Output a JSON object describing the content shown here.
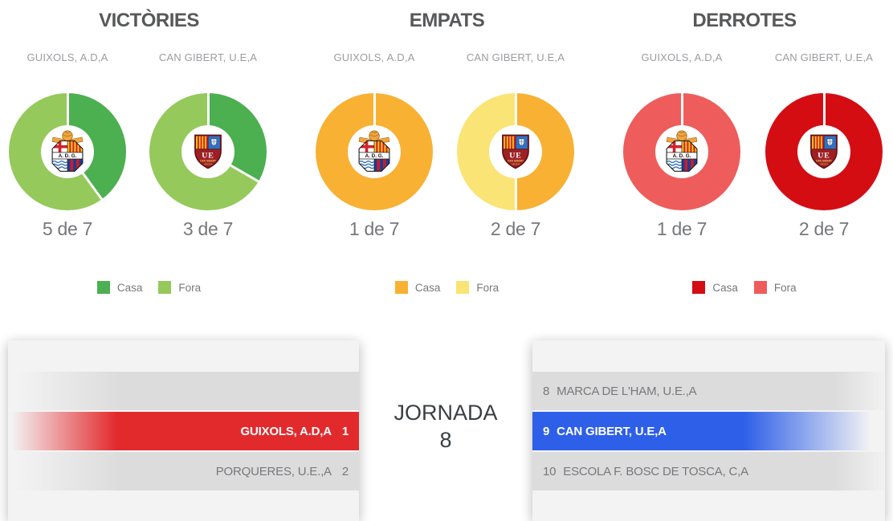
{
  "sections": [
    {
      "title": "VICTÒRIES",
      "legend": {
        "casa": "Casa",
        "fora": "Fora"
      },
      "casa_color": "#4CAF50",
      "fora_color": "#95C95B"
    },
    {
      "title": "EMPATS",
      "legend": {
        "casa": "Casa",
        "fora": "Fora"
      },
      "casa_color": "#F8B133",
      "fora_color": "#FAE475"
    },
    {
      "title": "DERROTES",
      "legend": {
        "casa": "Casa",
        "fora": "Fora"
      },
      "casa_color": "#D40D13",
      "fora_color": "#EF5C5C"
    }
  ],
  "chart_data": [
    {
      "type": "pie",
      "section": "VICTÒRIES",
      "team": "GUIXOLS, A.D,A",
      "crest": "adg-crest",
      "labels": [
        "Casa",
        "Fora"
      ],
      "values": [
        2,
        3
      ],
      "colors": [
        "#4CAF50",
        "#95C95B"
      ],
      "total": 7,
      "label": "5 de 7"
    },
    {
      "type": "pie",
      "section": "VICTÒRIES",
      "team": "CAN GIBERT, U.E,A",
      "crest": "ue-crest",
      "labels": [
        "Casa",
        "Fora"
      ],
      "values": [
        1,
        2
      ],
      "colors": [
        "#4CAF50",
        "#95C95B"
      ],
      "total": 7,
      "label": "3 de 7"
    },
    {
      "type": "pie",
      "section": "EMPATS",
      "team": "GUIXOLS, A.D,A",
      "crest": "adg-crest",
      "labels": [
        "Casa",
        "Fora"
      ],
      "values": [
        1,
        0
      ],
      "colors": [
        "#F8B133",
        "#FAE475"
      ],
      "total": 7,
      "label": "1 de 7"
    },
    {
      "type": "pie",
      "section": "EMPATS",
      "team": "CAN GIBERT, U.E,A",
      "crest": "ue-crest",
      "labels": [
        "Casa",
        "Fora"
      ],
      "values": [
        1,
        1
      ],
      "colors": [
        "#F8B133",
        "#FAE475"
      ],
      "total": 7,
      "label": "2 de 7"
    },
    {
      "type": "pie",
      "section": "DERROTES",
      "team": "GUIXOLS, A.D,A",
      "crest": "adg-crest",
      "labels": [
        "Casa",
        "Fora"
      ],
      "values": [
        0,
        1
      ],
      "colors": [
        "#D40D13",
        "#EF5C5C"
      ],
      "total": 7,
      "label": "1 de 7"
    },
    {
      "type": "pie",
      "section": "DERROTES",
      "team": "CAN GIBERT, U.E,A",
      "crest": "ue-crest",
      "labels": [
        "Casa",
        "Fora"
      ],
      "values": [
        2,
        0
      ],
      "colors": [
        "#D40D13",
        "#EF5C5C"
      ],
      "total": 7,
      "label": "2 de 7"
    }
  ],
  "standings": {
    "jornada_label": "JORNADA",
    "jornada_number": "8",
    "red_color": "#E22A2D",
    "blue_color": "#2E5FE8",
    "left_rows": [
      {
        "pos": "",
        "name": "",
        "style": "empty"
      },
      {
        "pos": "1",
        "name": "GUIXOLS, A.D,A",
        "style": "red"
      },
      {
        "pos": "2",
        "name": "PORQUERES, U.E.,A",
        "style": "gray"
      }
    ],
    "right_rows": [
      {
        "pos": "8",
        "name": "MARCA DE L'HAM, U.E.,A",
        "style": "gray"
      },
      {
        "pos": "9",
        "name": "CAN GIBERT, U.E,A",
        "style": "blue"
      },
      {
        "pos": "10",
        "name": "ESCOLA F. BOSC DE TOSCA, C,A",
        "style": "gray"
      }
    ]
  }
}
